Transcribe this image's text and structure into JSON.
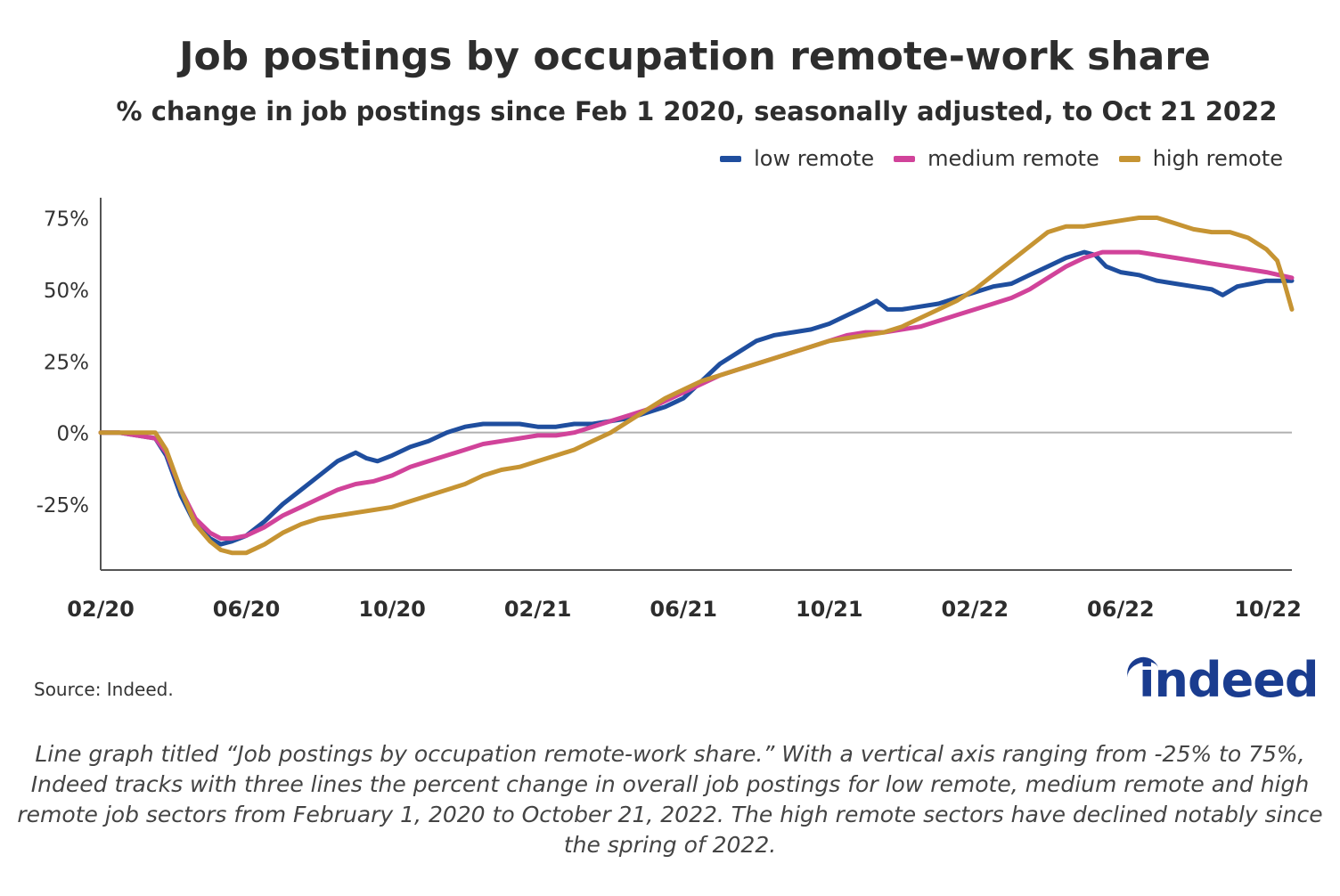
{
  "title": "Job postings by occupation remote-work share",
  "subtitle": "% change in job postings since Feb 1 2020, seasonally adjusted, to Oct 21 2022",
  "source": "Source: Indeed.",
  "logo_text": "indeed",
  "caption": "Line graph titled “Job postings by occupation remote-work share.” With a vertical axis ranging from -25% to 75%, Indeed tracks with three lines the percent change in overall job postings for low remote, medium remote and high remote job sectors from February 1, 2020 to October 21, 2022. The high remote sectors have declined notably since the spring of 2022.",
  "colors": {
    "low": "#1f4e9e",
    "medium": "#d1439a",
    "high": "#c69433",
    "axis": "#555555",
    "zero": "#b0b0b0"
  },
  "chart_data": {
    "type": "line",
    "xlabel": "",
    "ylabel": "",
    "x_tick_labels": [
      "02/20",
      "06/20",
      "10/20",
      "02/21",
      "06/21",
      "10/21",
      "02/22",
      "06/22",
      "10/22"
    ],
    "y_tick_labels": [
      "75%",
      "50%",
      "25%",
      "0%",
      "-25%"
    ],
    "y_ticks": [
      75,
      50,
      25,
      0,
      -25
    ],
    "ylim": [
      -48,
      82
    ],
    "xlim": [
      0,
      32.7
    ],
    "x_unit": "months since Feb 1 2020",
    "legend_position": "top-right",
    "series": [
      {
        "name": "low remote",
        "color": "#1f4e9e",
        "points": [
          [
            0,
            0
          ],
          [
            0.5,
            0
          ],
          [
            1,
            -1
          ],
          [
            1.5,
            -2
          ],
          [
            1.8,
            -8
          ],
          [
            2.2,
            -22
          ],
          [
            2.6,
            -32
          ],
          [
            3,
            -37
          ],
          [
            3.3,
            -39
          ],
          [
            3.6,
            -38
          ],
          [
            4,
            -36
          ],
          [
            4.5,
            -31
          ],
          [
            5,
            -25
          ],
          [
            5.5,
            -20
          ],
          [
            6,
            -15
          ],
          [
            6.5,
            -10
          ],
          [
            7,
            -7
          ],
          [
            7.3,
            -9
          ],
          [
            7.6,
            -10
          ],
          [
            8,
            -8
          ],
          [
            8.5,
            -5
          ],
          [
            9,
            -3
          ],
          [
            9.5,
            0
          ],
          [
            10,
            2
          ],
          [
            10.5,
            3
          ],
          [
            11,
            3
          ],
          [
            11.5,
            3
          ],
          [
            12,
            2
          ],
          [
            12.5,
            2
          ],
          [
            13,
            3
          ],
          [
            13.5,
            3
          ],
          [
            14,
            4
          ],
          [
            14.5,
            5
          ],
          [
            15,
            7
          ],
          [
            15.5,
            9
          ],
          [
            16,
            12
          ],
          [
            16.5,
            18
          ],
          [
            17,
            24
          ],
          [
            17.5,
            28
          ],
          [
            18,
            32
          ],
          [
            18.5,
            34
          ],
          [
            19,
            35
          ],
          [
            19.5,
            36
          ],
          [
            20,
            38
          ],
          [
            20.5,
            41
          ],
          [
            21,
            44
          ],
          [
            21.3,
            46
          ],
          [
            21.6,
            43
          ],
          [
            22,
            43
          ],
          [
            22.5,
            44
          ],
          [
            23,
            45
          ],
          [
            23.5,
            47
          ],
          [
            24,
            49
          ],
          [
            24.5,
            51
          ],
          [
            25,
            52
          ],
          [
            25.5,
            55
          ],
          [
            26,
            58
          ],
          [
            26.5,
            61
          ],
          [
            27,
            63
          ],
          [
            27.3,
            62
          ],
          [
            27.6,
            58
          ],
          [
            28,
            56
          ],
          [
            28.5,
            55
          ],
          [
            29,
            53
          ],
          [
            29.5,
            52
          ],
          [
            30,
            51
          ],
          [
            30.5,
            50
          ],
          [
            30.8,
            48
          ],
          [
            31.2,
            51
          ],
          [
            31.6,
            52
          ],
          [
            32,
            53
          ],
          [
            32.7,
            53
          ]
        ]
      },
      {
        "name": "medium remote",
        "color": "#d1439a",
        "points": [
          [
            0,
            0
          ],
          [
            0.5,
            0
          ],
          [
            1,
            -1
          ],
          [
            1.5,
            -2
          ],
          [
            1.8,
            -7
          ],
          [
            2.2,
            -20
          ],
          [
            2.6,
            -30
          ],
          [
            3,
            -35
          ],
          [
            3.3,
            -37
          ],
          [
            3.6,
            -37
          ],
          [
            4,
            -36
          ],
          [
            4.5,
            -33
          ],
          [
            5,
            -29
          ],
          [
            5.5,
            -26
          ],
          [
            6,
            -23
          ],
          [
            6.5,
            -20
          ],
          [
            7,
            -18
          ],
          [
            7.5,
            -17
          ],
          [
            8,
            -15
          ],
          [
            8.5,
            -12
          ],
          [
            9,
            -10
          ],
          [
            9.5,
            -8
          ],
          [
            10,
            -6
          ],
          [
            10.5,
            -4
          ],
          [
            11,
            -3
          ],
          [
            11.5,
            -2
          ],
          [
            12,
            -1
          ],
          [
            12.5,
            -1
          ],
          [
            13,
            0
          ],
          [
            13.5,
            2
          ],
          [
            14,
            4
          ],
          [
            14.5,
            6
          ],
          [
            15,
            8
          ],
          [
            15.5,
            11
          ],
          [
            16,
            14
          ],
          [
            16.5,
            17
          ],
          [
            17,
            20
          ],
          [
            17.5,
            22
          ],
          [
            18,
            24
          ],
          [
            18.5,
            26
          ],
          [
            19,
            28
          ],
          [
            19.5,
            30
          ],
          [
            20,
            32
          ],
          [
            20.5,
            34
          ],
          [
            21,
            35
          ],
          [
            21.5,
            35
          ],
          [
            22,
            36
          ],
          [
            22.5,
            37
          ],
          [
            23,
            39
          ],
          [
            23.5,
            41
          ],
          [
            24,
            43
          ],
          [
            24.5,
            45
          ],
          [
            25,
            47
          ],
          [
            25.5,
            50
          ],
          [
            26,
            54
          ],
          [
            26.5,
            58
          ],
          [
            27,
            61
          ],
          [
            27.5,
            63
          ],
          [
            28,
            63
          ],
          [
            28.5,
            63
          ],
          [
            29,
            62
          ],
          [
            29.5,
            61
          ],
          [
            30,
            60
          ],
          [
            30.5,
            59
          ],
          [
            31,
            58
          ],
          [
            31.5,
            57
          ],
          [
            32,
            56
          ],
          [
            32.7,
            54
          ]
        ]
      },
      {
        "name": "high remote",
        "color": "#c69433",
        "points": [
          [
            0,
            0
          ],
          [
            0.5,
            0
          ],
          [
            1,
            0
          ],
          [
            1.5,
            0
          ],
          [
            1.8,
            -6
          ],
          [
            2.2,
            -20
          ],
          [
            2.6,
            -32
          ],
          [
            3,
            -38
          ],
          [
            3.3,
            -41
          ],
          [
            3.6,
            -42
          ],
          [
            4,
            -42
          ],
          [
            4.5,
            -39
          ],
          [
            5,
            -35
          ],
          [
            5.5,
            -32
          ],
          [
            6,
            -30
          ],
          [
            6.5,
            -29
          ],
          [
            7,
            -28
          ],
          [
            7.5,
            -27
          ],
          [
            8,
            -26
          ],
          [
            8.5,
            -24
          ],
          [
            9,
            -22
          ],
          [
            9.5,
            -20
          ],
          [
            10,
            -18
          ],
          [
            10.5,
            -15
          ],
          [
            11,
            -13
          ],
          [
            11.5,
            -12
          ],
          [
            12,
            -10
          ],
          [
            12.5,
            -8
          ],
          [
            13,
            -6
          ],
          [
            13.5,
            -3
          ],
          [
            14,
            0
          ],
          [
            14.5,
            4
          ],
          [
            15,
            8
          ],
          [
            15.5,
            12
          ],
          [
            16,
            15
          ],
          [
            16.5,
            18
          ],
          [
            17,
            20
          ],
          [
            17.5,
            22
          ],
          [
            18,
            24
          ],
          [
            18.5,
            26
          ],
          [
            19,
            28
          ],
          [
            19.5,
            30
          ],
          [
            20,
            32
          ],
          [
            20.5,
            33
          ],
          [
            21,
            34
          ],
          [
            21.5,
            35
          ],
          [
            22,
            37
          ],
          [
            22.5,
            40
          ],
          [
            23,
            43
          ],
          [
            23.5,
            46
          ],
          [
            24,
            50
          ],
          [
            24.5,
            55
          ],
          [
            25,
            60
          ],
          [
            25.5,
            65
          ],
          [
            26,
            70
          ],
          [
            26.5,
            72
          ],
          [
            27,
            72
          ],
          [
            27.5,
            73
          ],
          [
            28,
            74
          ],
          [
            28.5,
            75
          ],
          [
            29,
            75
          ],
          [
            29.5,
            73
          ],
          [
            30,
            71
          ],
          [
            30.5,
            70
          ],
          [
            31,
            70
          ],
          [
            31.5,
            68
          ],
          [
            32,
            64
          ],
          [
            32.3,
            60
          ],
          [
            32.5,
            52
          ],
          [
            32.7,
            43
          ]
        ]
      }
    ]
  }
}
